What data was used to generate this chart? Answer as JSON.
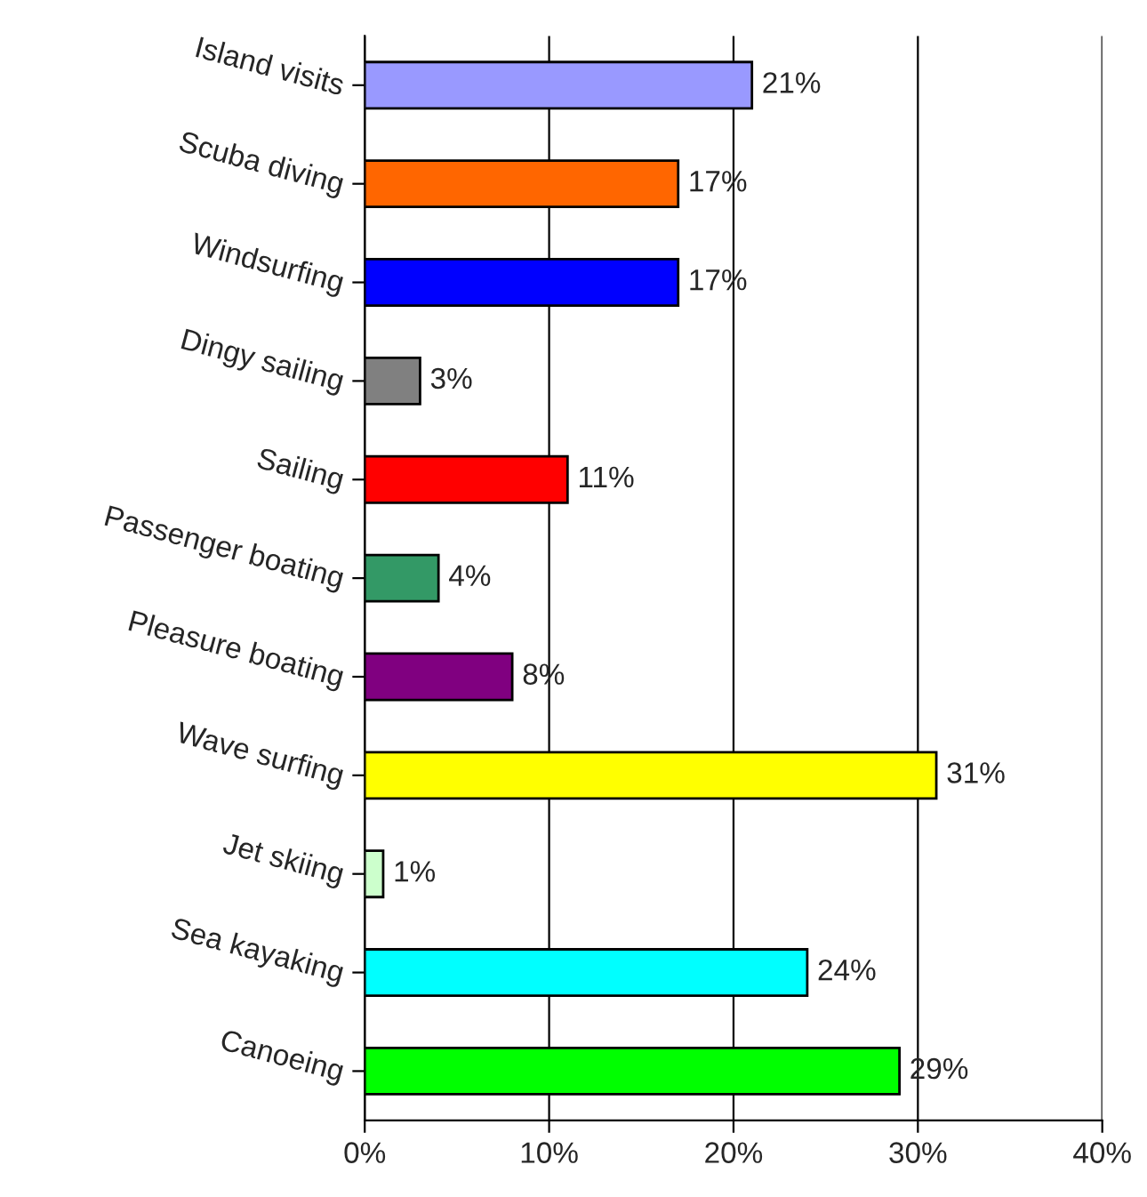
{
  "chart_data": {
    "type": "bar",
    "orientation": "horizontal",
    "categories": [
      "Island visits",
      "Scuba diving",
      "Windsurfing",
      "Dingy sailing",
      "Sailing",
      "Passenger boating",
      "Pleasure boating",
      "Wave surfing",
      "Jet skiing",
      "Sea kayaking",
      "Canoeing"
    ],
    "values": [
      21,
      17,
      17,
      3,
      11,
      4,
      8,
      31,
      1,
      24,
      29
    ],
    "colors": [
      "#9999ff",
      "#ff6600",
      "#0000ff",
      "#808080",
      "#ff0000",
      "#339966",
      "#800080",
      "#ffff00",
      "#ccffcc",
      "#00ffff",
      "#00ff00"
    ],
    "value_labels": [
      "21%",
      "17%",
      "17%",
      "3%",
      "11%",
      "4%",
      "8%",
      "31%",
      "1%",
      "24%",
      "29%"
    ],
    "xlim": [
      0,
      40
    ],
    "xticks": [
      {
        "value": 0,
        "label": "0%"
      },
      {
        "value": 10,
        "label": "10%"
      },
      {
        "value": 20,
        "label": "20%"
      },
      {
        "value": 30,
        "label": "30%"
      },
      {
        "value": 40,
        "label": "40%"
      }
    ],
    "grid": "x",
    "legend": false
  }
}
